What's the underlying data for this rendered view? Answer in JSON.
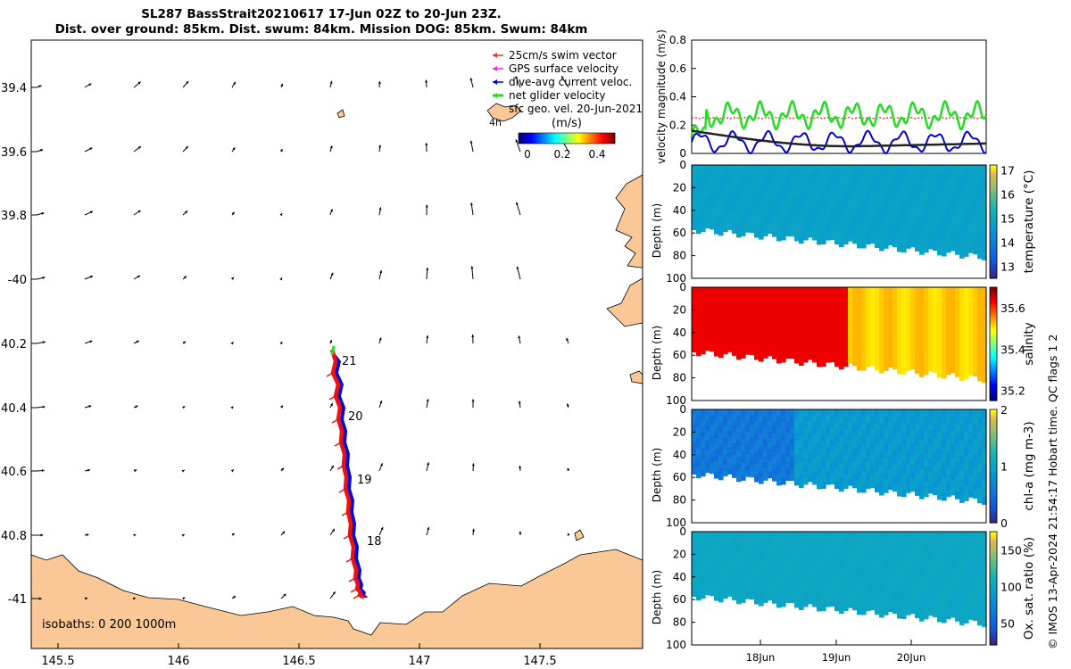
{
  "title": {
    "line1": "SL287 BassStrait20210617 17-Jun 02Z to 20-Jun 23Z.",
    "line2": "Dist. over ground: 85km. Dist. swum: 84km. Mission DOG: 85km. Swum: 84km"
  },
  "colors": {
    "land": "#f9c896",
    "track": "#e11",
    "current": "#0000dd",
    "net_velocity": "#22dd22",
    "swim": "#e33",
    "gps": "#e02ee0",
    "geo_trend": "#222222"
  },
  "map": {
    "lon_ticks": [
      "145.5",
      "146",
      "146.5",
      "147",
      "147.5"
    ],
    "lat_ticks": [
      "39.4",
      "39.6",
      "39.8",
      "-40",
      "40.2",
      "40.4",
      "40.6",
      "40.8",
      "-41"
    ],
    "legend": [
      {
        "label": "25cm/s swim vector",
        "color": "#e33"
      },
      {
        "label": "GPS surface velocity",
        "color": "#e02ee0"
      },
      {
        "label": "dive-avg current veloc.",
        "color": "#0000dd"
      },
      {
        "label": "net glider velocity",
        "color": "#22dd22"
      },
      {
        "label": "sfc geo. vel. 20-Jun-2021",
        "color": "#000000"
      }
    ],
    "colorbar_unit": "(m/s)",
    "colorbar_ticks": [
      "0",
      "0.2",
      "0.4"
    ],
    "day_labels": [
      "21",
      "20",
      "19",
      "18"
    ],
    "isobaths_text": "isobaths: 0   200  1000m",
    "inset_label": "4h"
  },
  "chart_data": [
    {
      "type": "line",
      "name": "velocity",
      "ylabel": "velocity magnitude (m/s)",
      "ylim": [
        0,
        0.8
      ],
      "yticks": [
        "0",
        "0.2",
        "0.4",
        "0.6",
        "0.8"
      ],
      "series": [
        {
          "name": "net glider velocity",
          "mean": 0.27
        },
        {
          "name": "dive-avg current veloc.",
          "mean": 0.08
        },
        {
          "name": "25cm/s swim vector",
          "constant": 0.25
        },
        {
          "name": "geo trend",
          "start": 0.16,
          "min": 0.05,
          "end": 0.07
        }
      ]
    },
    {
      "type": "heatmap",
      "name": "temperature",
      "ylabel": "Depth (m)",
      "cbar_label": "temperature (°C)",
      "yticks": [
        "0",
        "20",
        "40",
        "60",
        "80",
        "100"
      ],
      "cbar_ticks": [
        "13",
        "14",
        "15",
        "16",
        "17"
      ],
      "range": [
        12.5,
        17.2
      ],
      "value": 14.8
    },
    {
      "type": "heatmap",
      "name": "salinity",
      "ylabel": "Depth (m)",
      "cbar_label": "salinity",
      "yticks": [
        "0",
        "20",
        "40",
        "60",
        "80",
        "100"
      ],
      "cbar_ticks": [
        "35.2",
        "35.4",
        "35.6"
      ],
      "range": [
        35.15,
        35.7
      ],
      "value_early": 35.64,
      "value_late": 35.52
    },
    {
      "type": "heatmap",
      "name": "chla",
      "ylabel": "Depth (m)",
      "cbar_label": "chl-a (mg m-3)",
      "yticks": [
        "0",
        "20",
        "40",
        "60",
        "80",
        "100"
      ],
      "cbar_ticks": [
        "0",
        "1",
        "2"
      ],
      "range": [
        0,
        2
      ],
      "value_early": 0.55,
      "value_late": 0.9
    },
    {
      "type": "heatmap",
      "name": "oxygen",
      "ylabel": "Depth (m)",
      "cbar_label": "Ox. sat. ratio (%)",
      "yticks": [
        "0",
        "20",
        "40",
        "60",
        "80",
        "100"
      ],
      "cbar_ticks": [
        "50",
        "100",
        "150"
      ],
      "range": [
        20,
        175
      ],
      "value": 100
    }
  ],
  "x_ticks": [
    "18Jun",
    "19Jun",
    "20Jun"
  ],
  "footer": "© IMOS 13-Apr-2024 21:54:17 Hobart time. QC flags 1  2"
}
